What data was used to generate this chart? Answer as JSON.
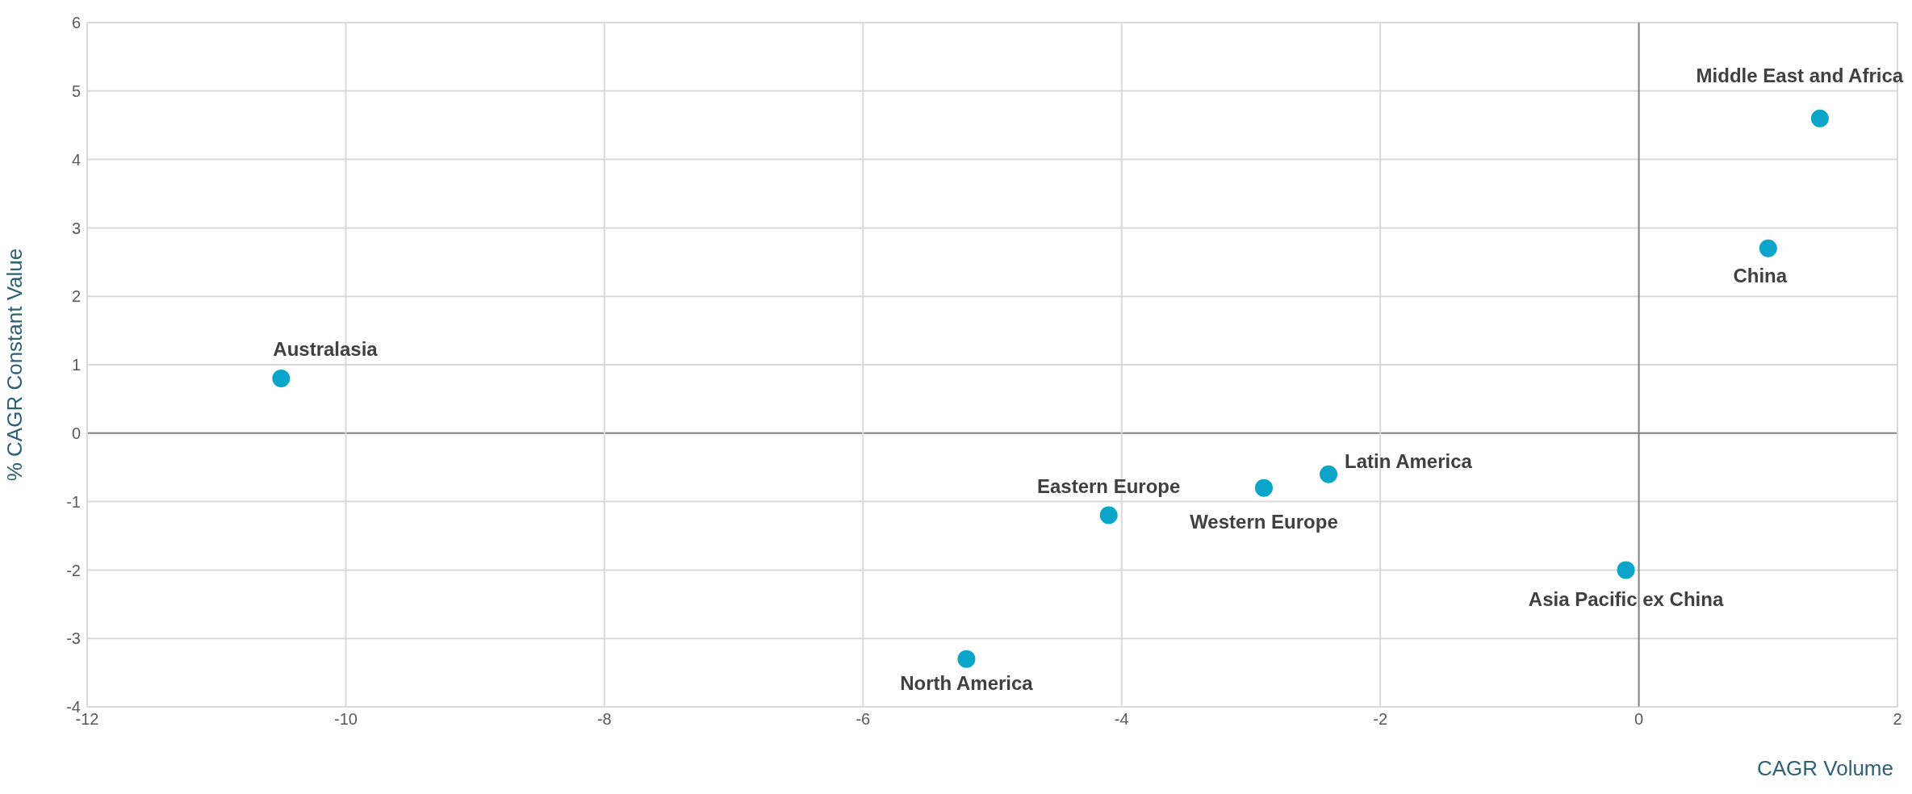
{
  "chart_data": {
    "type": "scatter",
    "xlabel": "CAGR Volume",
    "ylabel": "% CAGR Constant Value",
    "x": [
      -10.5,
      -4.1,
      -5.2,
      -2.9,
      -2.4,
      -0.1,
      1.0,
      1.4
    ],
    "series": [
      {
        "color": "#0aa5c8",
        "values": [
          0.8,
          -1.2,
          -3.3,
          -0.8,
          -0.6,
          -2.0,
          2.7,
          4.6
        ]
      }
    ],
    "xlim": [
      -12,
      2
    ],
    "xticks": [
      -12,
      -10,
      -8,
      -6,
      -4,
      -2,
      0,
      2
    ],
    "ylim": [
      -4,
      6
    ],
    "yticks": [
      -4,
      -3,
      -2,
      -1,
      0,
      1,
      2,
      3,
      4,
      5,
      6
    ],
    "grid": true,
    "marker": "circle",
    "legend": false,
    "annotations": [
      {
        "text": "Australasia",
        "x": -10.5,
        "y": 0.8
      },
      {
        "text": "Eastern Europe",
        "x": -4.1,
        "y": -1.2
      },
      {
        "text": "North America",
        "x": -5.2,
        "y": -3.3
      },
      {
        "text": "Western Europe",
        "x": -2.9,
        "y": -0.8
      },
      {
        "text": "Latin America",
        "x": -2.4,
        "y": -0.6
      },
      {
        "text": "Asia Pacific ex China",
        "x": -0.1,
        "y": -2.0
      },
      {
        "text": "China",
        "x": 1.0,
        "y": 2.7
      },
      {
        "text": "Middle  East and Africa",
        "x": 1.4,
        "y": 4.6
      }
    ]
  }
}
